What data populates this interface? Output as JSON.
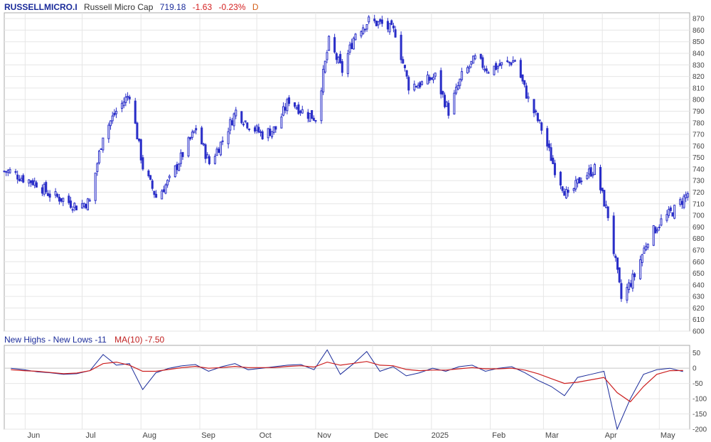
{
  "header": {
    "symbol": "RUSSELLMICRO.I",
    "name": "Russell Micro Cap",
    "price": "719.18",
    "change": "-1.63",
    "percent": "-0.23%",
    "period": "D"
  },
  "indicator": {
    "label": "New Highs - New Lows -11",
    "ma_label": "MA(10) -7.50"
  },
  "colors": {
    "candle": "#2a2fc8",
    "indicator_line": "#1a2b9a",
    "ma_line": "#cc1f1f",
    "grid": "#e6e6e6",
    "border": "#aaaaaa"
  },
  "chart_data": [
    {
      "type": "candlestick",
      "title": "Russell Micro Cap",
      "ylim": [
        600,
        875
      ],
      "y_ticks": [
        600,
        610,
        620,
        630,
        640,
        650,
        660,
        670,
        680,
        690,
        700,
        710,
        720,
        730,
        740,
        750,
        760,
        770,
        780,
        790,
        800,
        810,
        820,
        830,
        840,
        850,
        860,
        870
      ],
      "x_ticks": [
        "Jun",
        "Jul",
        "Aug",
        "Sep",
        "Oct",
        "Nov",
        "Dec",
        "2025",
        "Feb",
        "Mar",
        "Apr",
        "May"
      ],
      "grid": true,
      "close_series": [
        {
          "date": "2024-05-24",
          "close": 738
        },
        {
          "date": "2024-05-31",
          "close": 732
        },
        {
          "date": "2024-06-07",
          "close": 728
        },
        {
          "date": "2024-06-14",
          "close": 718
        },
        {
          "date": "2024-06-21",
          "close": 714
        },
        {
          "date": "2024-06-28",
          "close": 708
        },
        {
          "date": "2024-07-05",
          "close": 712
        },
        {
          "date": "2024-07-12",
          "close": 770
        },
        {
          "date": "2024-07-19",
          "close": 790
        },
        {
          "date": "2024-07-26",
          "close": 805
        },
        {
          "date": "2024-08-02",
          "close": 742
        },
        {
          "date": "2024-08-09",
          "close": 716
        },
        {
          "date": "2024-08-16",
          "close": 730
        },
        {
          "date": "2024-08-23",
          "close": 753
        },
        {
          "date": "2024-08-30",
          "close": 775
        },
        {
          "date": "2024-09-06",
          "close": 745
        },
        {
          "date": "2024-09-13",
          "close": 765
        },
        {
          "date": "2024-09-20",
          "close": 790
        },
        {
          "date": "2024-09-27",
          "close": 778
        },
        {
          "date": "2024-10-04",
          "close": 770
        },
        {
          "date": "2024-10-11",
          "close": 775
        },
        {
          "date": "2024-10-18",
          "close": 800
        },
        {
          "date": "2024-10-25",
          "close": 790
        },
        {
          "date": "2024-11-01",
          "close": 784
        },
        {
          "date": "2024-11-08",
          "close": 850
        },
        {
          "date": "2024-11-15",
          "close": 825
        },
        {
          "date": "2024-11-22",
          "close": 858
        },
        {
          "date": "2024-11-29",
          "close": 868
        },
        {
          "date": "2024-12-06",
          "close": 865
        },
        {
          "date": "2024-12-13",
          "close": 858
        },
        {
          "date": "2024-12-20",
          "close": 812
        },
        {
          "date": "2024-12-27",
          "close": 814
        },
        {
          "date": "2025-01-03",
          "close": 820
        },
        {
          "date": "2025-01-10",
          "close": 790
        },
        {
          "date": "2025-01-17",
          "close": 820
        },
        {
          "date": "2025-01-24",
          "close": 835
        },
        {
          "date": "2025-01-31",
          "close": 826
        },
        {
          "date": "2025-02-07",
          "close": 830
        },
        {
          "date": "2025-02-14",
          "close": 834
        },
        {
          "date": "2025-02-21",
          "close": 800
        },
        {
          "date": "2025-02-28",
          "close": 775
        },
        {
          "date": "2025-03-07",
          "close": 740
        },
        {
          "date": "2025-03-14",
          "close": 715
        },
        {
          "date": "2025-03-21",
          "close": 733
        },
        {
          "date": "2025-03-28",
          "close": 740
        },
        {
          "date": "2025-04-04",
          "close": 700
        },
        {
          "date": "2025-04-11",
          "close": 628
        },
        {
          "date": "2025-04-18",
          "close": 648
        },
        {
          "date": "2025-04-25",
          "close": 680
        },
        {
          "date": "2025-05-02",
          "close": 695
        },
        {
          "date": "2025-05-09",
          "close": 705
        },
        {
          "date": "2025-05-16",
          "close": 719
        }
      ]
    },
    {
      "type": "line",
      "title": "New Highs - New Lows",
      "ylim": [
        -200,
        75
      ],
      "y_ticks": [
        -200,
        -150,
        -100,
        -50,
        0,
        50
      ],
      "series": [
        {
          "name": "New Highs - New Lows",
          "values": [
            0,
            -5,
            -12,
            -15,
            -20,
            -18,
            -8,
            45,
            10,
            15,
            -70,
            -15,
            0,
            8,
            12,
            -10,
            5,
            15,
            -5,
            0,
            5,
            10,
            12,
            -5,
            60,
            -20,
            15,
            55,
            -10,
            5,
            -25,
            -15,
            0,
            -10,
            5,
            10,
            -10,
            0,
            5,
            -15,
            -40,
            -60,
            -90,
            -30,
            -20,
            -10,
            -200,
            -100,
            -20,
            -5,
            0,
            -11
          ]
        },
        {
          "name": "MA(10)",
          "values": [
            -5,
            -8,
            -10,
            -14,
            -18,
            -16,
            -8,
            15,
            20,
            10,
            -10,
            -10,
            -4,
            2,
            6,
            0,
            2,
            6,
            2,
            2,
            2,
            6,
            8,
            4,
            20,
            10,
            16,
            22,
            10,
            8,
            -4,
            -8,
            -6,
            -6,
            -2,
            2,
            -2,
            -2,
            0,
            -6,
            -18,
            -34,
            -50,
            -46,
            -38,
            -30,
            -80,
            -110,
            -60,
            -20,
            -8,
            -7.5
          ]
        }
      ]
    }
  ]
}
